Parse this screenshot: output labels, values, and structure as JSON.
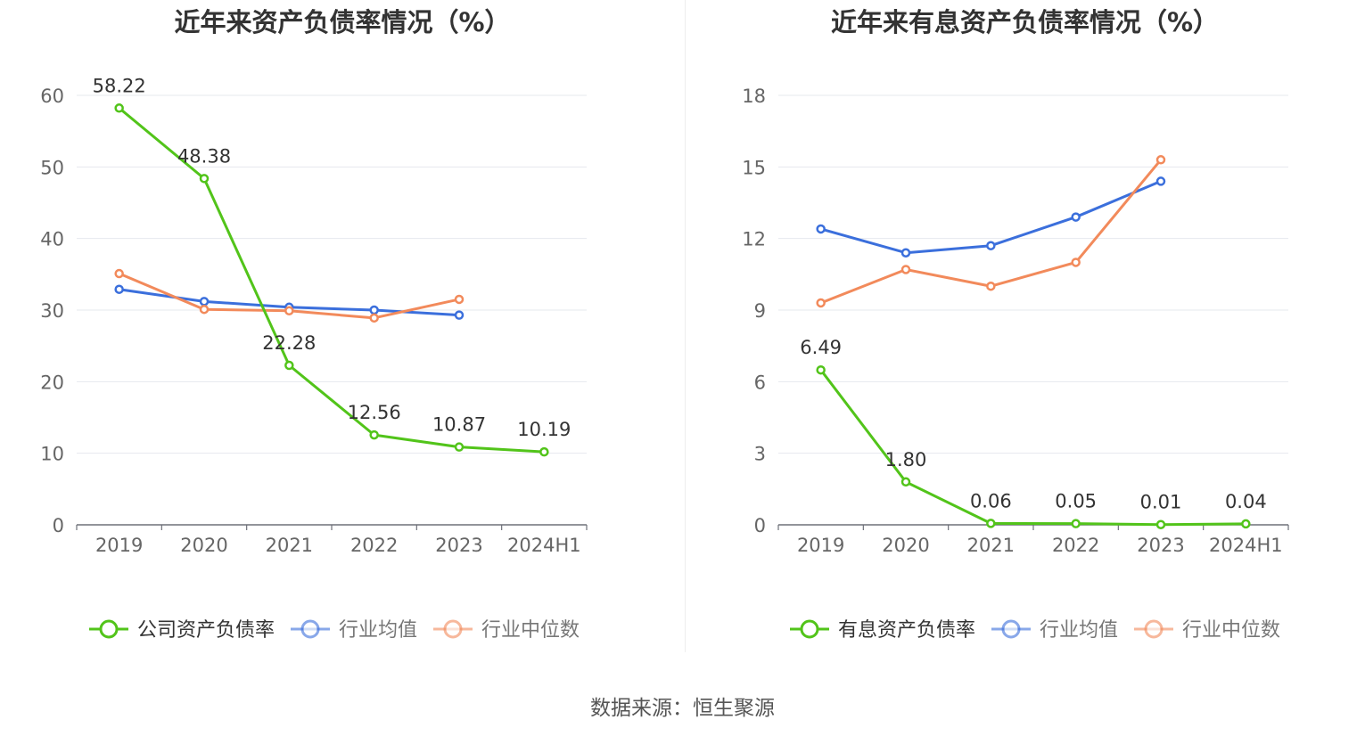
{
  "source_text": "数据来源：恒生聚源",
  "colors": {
    "company": "#52c41a",
    "industry_avg": "#3b6fdc",
    "industry_median": "#f28a5b"
  },
  "chart_data": [
    {
      "type": "line",
      "title": "近年来资产负债率情况（%）",
      "categories": [
        "2019",
        "2020",
        "2021",
        "2022",
        "2023",
        "2024H1"
      ],
      "ylim": [
        0,
        60
      ],
      "yticks": [
        0,
        10,
        20,
        30,
        40,
        50,
        60
      ],
      "grid": true,
      "legend_position": "bottom",
      "series": [
        {
          "name": "公司资产负债率",
          "values": [
            58.22,
            48.38,
            22.28,
            12.56,
            10.87,
            10.19
          ],
          "labels": [
            "58.22",
            "48.38",
            "22.28",
            "12.56",
            "10.87",
            "10.19"
          ]
        },
        {
          "name": "行业均值",
          "values": [
            32.9,
            31.2,
            30.4,
            30.0,
            29.3,
            null
          ]
        },
        {
          "name": "行业中位数",
          "values": [
            35.1,
            30.1,
            29.9,
            28.9,
            31.5,
            null
          ]
        }
      ]
    },
    {
      "type": "line",
      "title": "近年来有息资产负债率情况（%）",
      "categories": [
        "2019",
        "2020",
        "2021",
        "2022",
        "2023",
        "2024H1"
      ],
      "ylim": [
        0,
        18
      ],
      "yticks": [
        0,
        3,
        6,
        9,
        12,
        15,
        18
      ],
      "grid": true,
      "legend_position": "bottom",
      "series": [
        {
          "name": "有息资产负债率",
          "values": [
            6.49,
            1.8,
            0.06,
            0.05,
            0.01,
            0.04
          ],
          "labels": [
            "6.49",
            "1.80",
            "0.06",
            "0.05",
            "0.01",
            "0.04"
          ]
        },
        {
          "name": "行业均值",
          "values": [
            12.4,
            11.4,
            11.7,
            12.9,
            14.4,
            null
          ]
        },
        {
          "name": "行业中位数",
          "values": [
            9.3,
            10.7,
            10.0,
            11.0,
            15.3,
            null
          ]
        }
      ]
    }
  ]
}
